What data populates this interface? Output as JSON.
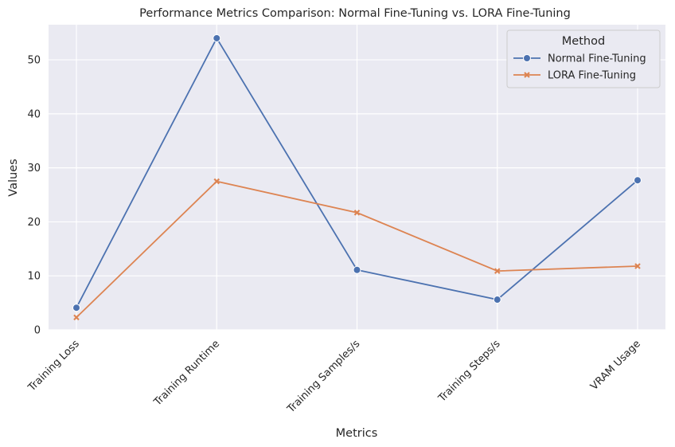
{
  "chart_data": {
    "type": "line",
    "title": "Performance Metrics Comparison: Normal Fine-Tuning vs. LORA Fine-Tuning",
    "xlabel": "Metrics",
    "ylabel": "Values",
    "categories": [
      "Training Loss",
      "Training Runtime",
      "Training Samples/s",
      "Training Steps/s",
      "VRAM Usage"
    ],
    "ylim": [
      0,
      56.5
    ],
    "yticks": [
      0,
      10,
      20,
      30,
      40,
      50
    ],
    "grid": true,
    "legend": {
      "title": "Method",
      "placement": "top-right"
    },
    "series": [
      {
        "name": "Normal Fine-Tuning",
        "color": "#4c72b0",
        "marker": "circle",
        "values": [
          4.1,
          54.0,
          11.1,
          5.6,
          27.7
        ]
      },
      {
        "name": "LORA Fine-Tuning",
        "color": "#dd8452",
        "marker": "x",
        "values": [
          2.3,
          27.5,
          21.7,
          10.9,
          11.8
        ]
      }
    ]
  }
}
